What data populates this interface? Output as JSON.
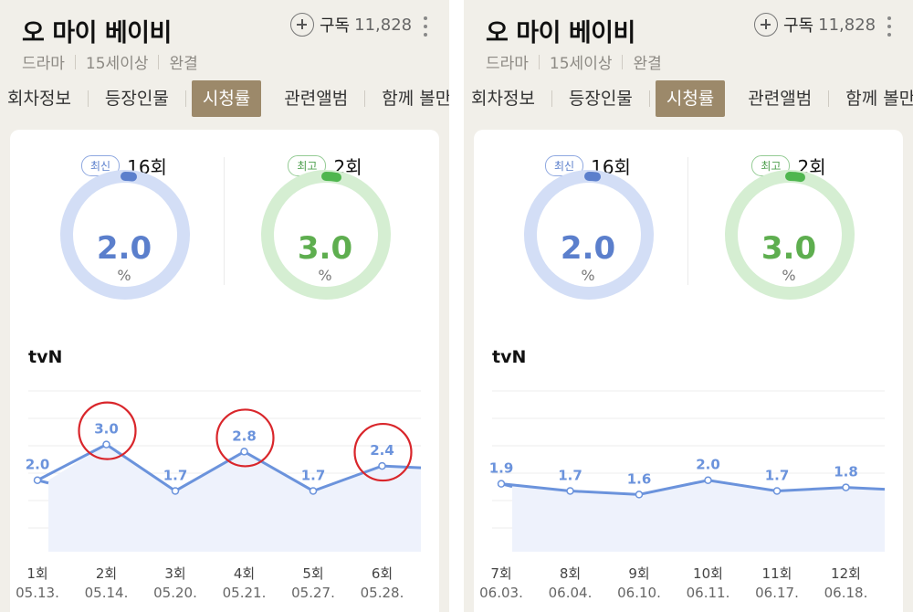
{
  "panels": [
    {
      "title": "오 마이 베이비",
      "meta": [
        "드라마",
        "15세이상",
        "완결"
      ],
      "subscribe": {
        "label": "구독",
        "count": "11,828"
      },
      "tabs": [
        {
          "label": "회차정보",
          "active": false
        },
        {
          "label": "등장인물",
          "active": false
        },
        {
          "label": "시청률",
          "active": true
        },
        {
          "label": "관련앨범",
          "active": false
        },
        {
          "label": "함께 볼만",
          "active": false
        }
      ],
      "latest": {
        "badge": "최신",
        "episode": "16회",
        "value": "2.0",
        "unit": "%",
        "fraction": 0.02
      },
      "best": {
        "badge": "최고",
        "episode": "2회",
        "value": "3.0",
        "unit": "%",
        "fraction": 0.03
      },
      "network": "tvN",
      "chart_data": {
        "type": "line",
        "categories": [
          "1회",
          "2회",
          "3회",
          "4회",
          "5회",
          "6회"
        ],
        "dates": [
          "05.13.",
          "05.14.",
          "05.20.",
          "05.21.",
          "05.27.",
          "05.28."
        ],
        "values": [
          2.0,
          3.0,
          1.7,
          2.8,
          1.7,
          2.4
        ],
        "labels": [
          "2.0",
          "3.0",
          "1.7",
          "2.8",
          "1.7",
          "2.4"
        ],
        "ylim": [
          0,
          4.6
        ],
        "annotations_circled": [
          "3.0",
          "2.8",
          "2.4"
        ],
        "line_color": "#6b93dc",
        "highlight_color": "#d9262b"
      }
    },
    {
      "title": "오 마이 베이비",
      "meta": [
        "드라마",
        "15세이상",
        "완결"
      ],
      "subscribe": {
        "label": "구독",
        "count": "11,828"
      },
      "tabs": [
        {
          "label": "회차정보",
          "active": false
        },
        {
          "label": "등장인물",
          "active": false
        },
        {
          "label": "시청률",
          "active": true
        },
        {
          "label": "관련앨범",
          "active": false
        },
        {
          "label": "함께 볼만",
          "active": false
        }
      ],
      "latest": {
        "badge": "최신",
        "episode": "16회",
        "value": "2.0",
        "unit": "%",
        "fraction": 0.02
      },
      "best": {
        "badge": "최고",
        "episode": "2회",
        "value": "3.0",
        "unit": "%",
        "fraction": 0.03
      },
      "network": "tvN",
      "chart_data": {
        "type": "line",
        "categories": [
          "7회",
          "8회",
          "9회",
          "10회",
          "11회",
          "12회"
        ],
        "dates": [
          "06.03.",
          "06.04.",
          "06.10.",
          "06.11.",
          "06.17.",
          "06.18."
        ],
        "values": [
          1.9,
          1.7,
          1.6,
          2.0,
          1.7,
          1.8
        ],
        "labels": [
          "1.9",
          "1.7",
          "1.6",
          "2.0",
          "1.7",
          "1.8"
        ],
        "ylim": [
          0,
          4.6
        ],
        "annotations_circled": [],
        "line_color": "#6b93dc",
        "highlight_color": "#d9262b"
      }
    }
  ],
  "colors": {
    "blue_ring_track": "#d3def6",
    "blue_ring_fill": "#5b7fcc",
    "blue_text": "#5b7fcc",
    "green_ring_track": "#d5eed2",
    "green_ring_fill": "#4fb64f",
    "green_text": "#5eae4f"
  }
}
